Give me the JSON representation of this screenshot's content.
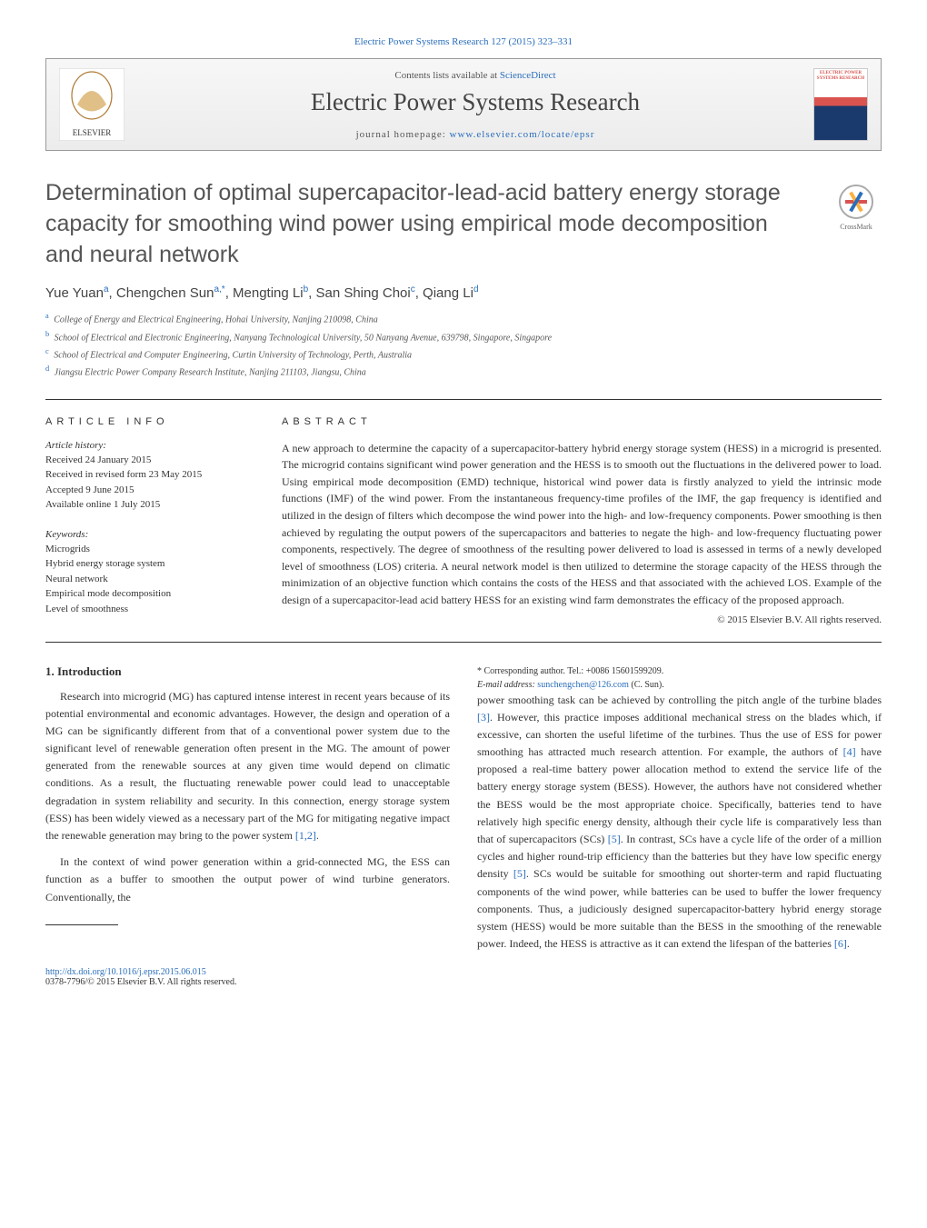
{
  "top_citation": "Electric Power Systems Research 127 (2015) 323–331",
  "header": {
    "contents_pre": "Contents lists available at ",
    "contents_link": "ScienceDirect",
    "journal_title": "Electric Power Systems Research",
    "homepage_pre": "journal homepage: ",
    "homepage_url": "www.elsevier.com/locate/epsr",
    "publisher": "ELSEVIER",
    "cover_text": "ELECTRIC POWER SYSTEMS RESEARCH"
  },
  "article": {
    "title": "Determination of optimal supercapacitor-lead-acid battery energy storage capacity for smoothing wind power using empirical mode decomposition and neural network",
    "crossmark_label": "CrossMark",
    "authors_html": "Yue Yuan<sup>a</sup>, Chengchen Sun<sup>a,*</sup>, Mengting Li<sup>b</sup>, San Shing Choi<sup>c</sup>, Qiang Li<sup>d</sup>",
    "affiliations": [
      {
        "tag": "a",
        "text": "College of Energy and Electrical Engineering, Hohai University, Nanjing 210098, China"
      },
      {
        "tag": "b",
        "text": "School of Electrical and Electronic Engineering, Nanyang Technological University, 50 Nanyang Avenue, 639798, Singapore, Singapore"
      },
      {
        "tag": "c",
        "text": "School of Electrical and Computer Engineering, Curtin University of Technology, Perth, Australia"
      },
      {
        "tag": "d",
        "text": "Jiangsu Electric Power Company Research Institute, Nanjing 211103, Jiangsu, China"
      }
    ]
  },
  "info": {
    "label": "ARTICLE INFO",
    "history_label": "Article history:",
    "history": [
      "Received 24 January 2015",
      "Received in revised form 23 May 2015",
      "Accepted 9 June 2015",
      "Available online 1 July 2015"
    ],
    "keywords_label": "Keywords:",
    "keywords": [
      "Microgrids",
      "Hybrid energy storage system",
      "Neural network",
      "Empirical mode decomposition",
      "Level of smoothness"
    ]
  },
  "abstract": {
    "label": "ABSTRACT",
    "text": "A new approach to determine the capacity of a supercapacitor-battery hybrid energy storage system (HESS) in a microgrid is presented. The microgrid contains significant wind power generation and the HESS is to smooth out the fluctuations in the delivered power to load. Using empirical mode decomposition (EMD) technique, historical wind power data is firstly analyzed to yield the intrinsic mode functions (IMF) of the wind power. From the instantaneous frequency-time profiles of the IMF, the gap frequency is identified and utilized in the design of filters which decompose the wind power into the high- and low-frequency components. Power smoothing is then achieved by regulating the output powers of the supercapacitors and batteries to negate the high- and low-frequency fluctuating power components, respectively. The degree of smoothness of the resulting power delivered to load is assessed in terms of a newly developed level of smoothness (LOS) criteria. A neural network model is then utilized to determine the storage capacity of the HESS through the minimization of an objective function which contains the costs of the HESS and that associated with the achieved LOS. Example of the design of a supercapacitor-lead acid battery HESS for an existing wind farm demonstrates the efficacy of the proposed approach.",
    "copyright": "© 2015 Elsevier B.V. All rights reserved."
  },
  "body": {
    "h1": "1. Introduction",
    "p1": "Research into microgrid (MG) has captured intense interest in recent years because of its potential environmental and economic advantages. However, the design and operation of a MG can be significantly different from that of a conventional power system due to the significant level of renewable generation often present in the MG. The amount of power generated from the renewable sources at any given time would depend on climatic conditions. As a result, the fluctuating renewable power could lead to unacceptable degradation in system reliability and security. In this connection, energy storage system (ESS) has been widely viewed as a necessary part of the MG for mitigating negative impact the renewable generation may bring to the power system ",
    "p1_ref": "[1,2]",
    "p1_end": ".",
    "p2": "In the context of wind power generation within a grid-connected MG, the ESS can function as a buffer to smoothen the output power of wind turbine generators. Conventionally, the",
    "p3a": "power smoothing task can be achieved by controlling the pitch angle of the turbine blades ",
    "p3_ref1": "[3]",
    "p3b": ". However, this practice imposes additional mechanical stress on the blades which, if excessive, can shorten the useful lifetime of the turbines. Thus the use of ESS for power smoothing has attracted much research attention. For example, the authors of ",
    "p3_ref2": "[4]",
    "p3c": " have proposed a real-time battery power allocation method to extend the service life of the battery energy storage system (BESS). However, the authors have not considered whether the BESS would be the most appropriate choice. Specifically, batteries tend to have relatively high specific energy density, although their cycle life is comparatively less than that of supercapacitors (SCs) ",
    "p3_ref3": "[5]",
    "p3d": ". In contrast, SCs have a cycle life of the order of a million cycles and higher round-trip efficiency than the batteries but they have low specific energy density ",
    "p3_ref4": "[5]",
    "p3e": ". SCs would be suitable for smoothing out shorter-term and rapid fluctuating components of the wind power, while batteries can be used to buffer the lower frequency components. Thus, a judiciously designed supercapacitor-battery hybrid energy storage system (HESS) would be more suitable than the BESS in the smoothing of the renewable power. Indeed, the HESS is attractive as it can extend the lifespan of the batteries ",
    "p3_ref5": "[6]",
    "p3f": "."
  },
  "footnote": {
    "corr": "* Corresponding author. Tel.: +0086 15601599209.",
    "email_label": "E-mail address: ",
    "email": "sunchengchen@126.com",
    "email_post": " (C. Sun)."
  },
  "bottom": {
    "doi": "http://dx.doi.org/10.1016/j.epsr.2015.06.015",
    "issn_copy": "0378-7796/© 2015 Elsevier B.V. All rights reserved."
  },
  "colors": {
    "link": "#2a6ebb",
    "text": "#333333",
    "title_gray": "#555555"
  }
}
